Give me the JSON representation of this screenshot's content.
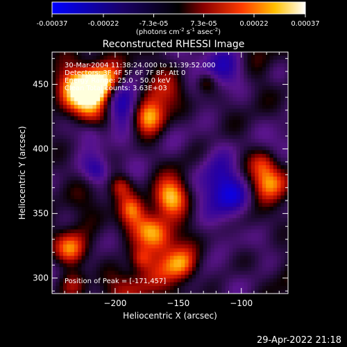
{
  "footer_timestamp": "29-Apr-2022 21:18",
  "colorbar": {
    "tick_labels": [
      "-0.00037",
      "-0.00022",
      "-7.3e-05",
      "7.3e-05",
      "0.00022",
      "0.00037"
    ],
    "tick_values": [
      -0.00037,
      -0.00022,
      -7.3e-05,
      7.3e-05,
      0.00022,
      0.00037
    ],
    "range": [
      -0.00037,
      0.00037
    ],
    "unit_main": "(photons cm",
    "unit_exp1": "-2",
    "unit_mid1": " s",
    "unit_exp2": "-1",
    "unit_mid2": " asec",
    "unit_exp3": "-2",
    "unit_end": ")",
    "colors": [
      "#0000ff",
      "#1a0066",
      "#000000",
      "#8b0000",
      "#ff3c00",
      "#ffc000",
      "#ffffff"
    ]
  },
  "chart_data": {
    "type": "heatmap",
    "title": "Reconstructed RHESSI Image",
    "xlabel": "Heliocentric X (arcsec)",
    "ylabel": "Heliocentric Y (arcsec)",
    "xlim": [
      -250,
      -63
    ],
    "ylim": [
      288,
      475
    ],
    "x_ticks": [
      -200,
      -150,
      -100
    ],
    "x_tick_labels": [
      "−200",
      "−150",
      "−100"
    ],
    "y_ticks": [
      300,
      350,
      400,
      450
    ],
    "y_tick_labels": [
      "300",
      "350",
      "400",
      "450"
    ],
    "annotations": [
      "30-Mar-2004 11:38:24.000 to 11:39:52.000",
      "Detectors: 3F 4F 5F 6F 7F 8F, Att 0",
      "Energy Range: 25.0 - 50.0 keV",
      "Clean     Total counts: 3.63E+03"
    ],
    "peak_label": "Position of Peak = [-171,457]",
    "peak_position": [
      -171,
      457
    ],
    "total_counts": 3630
  }
}
